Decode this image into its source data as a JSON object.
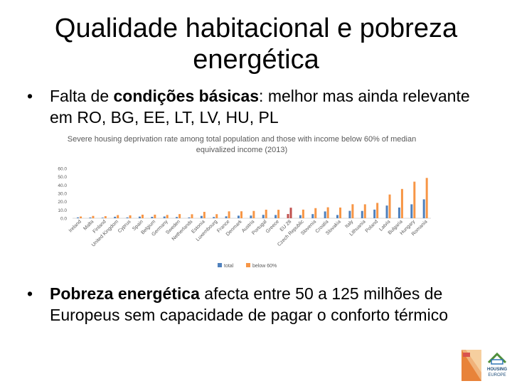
{
  "slide": {
    "title": "Qualidade habitacional e pobreza energética",
    "bullet1_plain1": "Falta de ",
    "bullet1_bold": "condições básicas",
    "bullet1_plain2": ": melhor mas ainda relevante em RO, BG, EE, LT, LV, HU, PL",
    "bullet2_bold": "Pobreza energética",
    "bullet2_plain": " afecta entre 50 a 125 milhões de Europeus sem capacidade de pagar o conforto térmico",
    "bullet_glyph": "•",
    "logo_text_1": "HOUSING",
    "logo_text_2": "EUROPE"
  },
  "colors": {
    "total": "#4f81bd",
    "below60": "#f79646",
    "highlight": "#c0504d",
    "axis_text": "#595959"
  },
  "chart_data": {
    "type": "bar",
    "title": "Severe housing deprivation rate among total population and those with income below 60% of median equivalized income (2013)",
    "ylim": [
      0,
      60
    ],
    "yticks": [
      "60.0",
      "50.0",
      "40.0",
      "30.0",
      "20.0",
      "10.0",
      "0.0"
    ],
    "legend_position": "bottom",
    "categories": [
      "Ireland",
      "Malta",
      "Finland",
      "United Kingdom",
      "Cyprus",
      "Spain",
      "Belgium",
      "Germany",
      "Sweden",
      "Netherlands",
      "Estonia",
      "Luxembourg",
      "France",
      "Denmark",
      "Austria",
      "Portugal",
      "Greece",
      "EU 28",
      "Czech Republic",
      "Slovenia",
      "Croatia",
      "Slovakia",
      "Italy",
      "Lithuania",
      "Poland",
      "Latvia",
      "Bulgaria",
      "Hungary",
      "Romania"
    ],
    "highlight_category": "EU 28",
    "series": [
      {
        "name": "total",
        "values": [
          1.0,
          0.9,
          0.7,
          1.8,
          1.0,
          2.0,
          1.7,
          2.1,
          1.5,
          1.0,
          2.8,
          1.5,
          2.3,
          3.1,
          3.2,
          4.1,
          3.9,
          5.1,
          3.7,
          5.0,
          8.2,
          3.9,
          8.9,
          8.8,
          10.4,
          15.3,
          12.9,
          16.8,
          22.8
        ]
      },
      {
        "name": "below 60%",
        "values": [
          2.1,
          2.8,
          2.5,
          3.8,
          3.5,
          4.3,
          4.3,
          4.0,
          5.0,
          4.8,
          7.7,
          4.9,
          8.3,
          8.4,
          8.8,
          10.3,
          10.2,
          12.7,
          10.4,
          12.2,
          13.2,
          12.9,
          16.9,
          16.8,
          18.5,
          28.6,
          35.3,
          44.1,
          48.6
        ]
      }
    ]
  }
}
